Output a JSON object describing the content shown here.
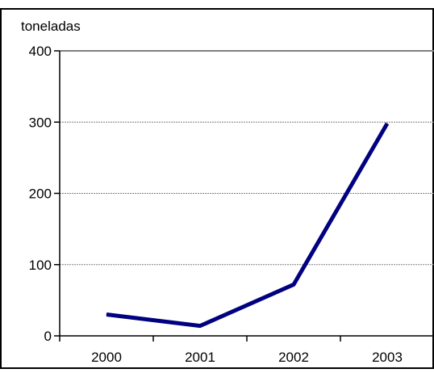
{
  "chart_data": {
    "type": "line",
    "ylabel": "toneladas",
    "categories": [
      "2000",
      "2001",
      "2002",
      "2003"
    ],
    "series": [
      {
        "values": [
          30,
          14,
          72,
          298
        ]
      }
    ],
    "ylim": [
      0,
      400
    ],
    "yticks": [
      0,
      100,
      200,
      300,
      400
    ],
    "grid": true,
    "legend": "none",
    "line_color": "#000080",
    "grid_color": "#808080"
  }
}
